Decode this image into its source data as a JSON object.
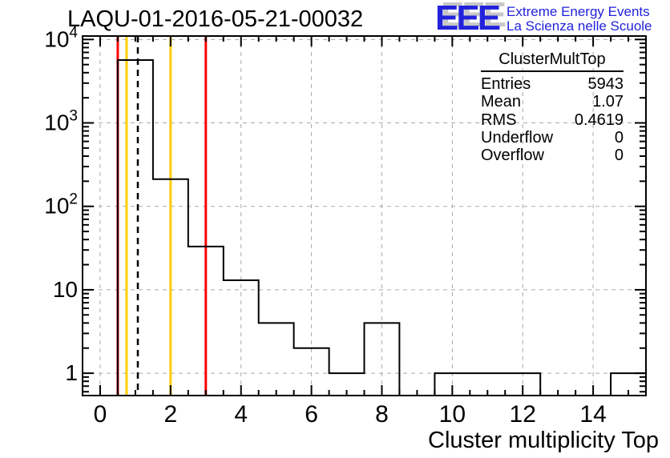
{
  "page": {
    "background": "#ffffff"
  },
  "header": {
    "plot_title": "LAQU-01-2016-05-21-00032",
    "logo": {
      "acronym": "EEE",
      "tagline_line1": "Extreme Energy Events",
      "tagline_line2": "La Scienza nelle Scuole",
      "accent_color": "#2222dd",
      "shadow_color": "#c7c7c7"
    }
  },
  "stats_box": {
    "title": "ClusterMultTop",
    "rows": [
      {
        "label": "Entries",
        "value": "5943"
      },
      {
        "label": "Mean",
        "value": "1.07"
      },
      {
        "label": "RMS",
        "value": "0.4619"
      },
      {
        "label": "Underflow",
        "value": "0"
      },
      {
        "label": "Overflow",
        "value": "0"
      }
    ]
  },
  "chart_data": {
    "type": "bar",
    "style": "step-histogram-outline",
    "title": "LAQU-01-2016-05-21-00032",
    "xlabel": "Cluster multiplicity Top",
    "ylabel": "",
    "yscale": "log",
    "xlim": [
      -0.5,
      15.5
    ],
    "ylim": [
      0.54,
      11000
    ],
    "grid": true,
    "bin_centers": [
      0,
      1,
      2,
      3,
      4,
      5,
      6,
      7,
      8,
      9,
      10,
      11,
      12,
      13,
      14,
      15
    ],
    "values": [
      0,
      5670,
      212,
      33,
      13,
      4,
      2,
      1,
      4,
      0,
      1,
      1,
      1,
      0,
      0,
      1
    ],
    "x_ticks": [
      0,
      2,
      4,
      6,
      8,
      10,
      12,
      14
    ],
    "x_tick_labels": [
      "0",
      "2",
      "4",
      "6",
      "8",
      "10",
      "12",
      "14"
    ],
    "y_ticks": [
      1,
      10,
      100,
      1000,
      10000
    ],
    "y_tick_labels": [
      "1",
      "10",
      "10^2",
      "10^3",
      "10^4"
    ],
    "marker_lines": [
      {
        "x": 0.5,
        "color": "#ff0000",
        "style": "solid",
        "name": "red-limit-low-line"
      },
      {
        "x": 0.75,
        "color": "#ffcc00",
        "style": "solid",
        "name": "orange-limit-low-line"
      },
      {
        "x": 1.07,
        "color": "#000000",
        "style": "dashed",
        "name": "mean-dashed-line"
      },
      {
        "x": 2,
        "color": "#ffcc00",
        "style": "solid",
        "name": "orange-limit-high-line"
      },
      {
        "x": 3,
        "color": "#ff0000",
        "style": "solid",
        "name": "red-limit-high-line"
      }
    ],
    "histogram_color": "#000000",
    "grid_color": "#a9a9a9",
    "frame_color": "#000000",
    "legend": "none"
  }
}
